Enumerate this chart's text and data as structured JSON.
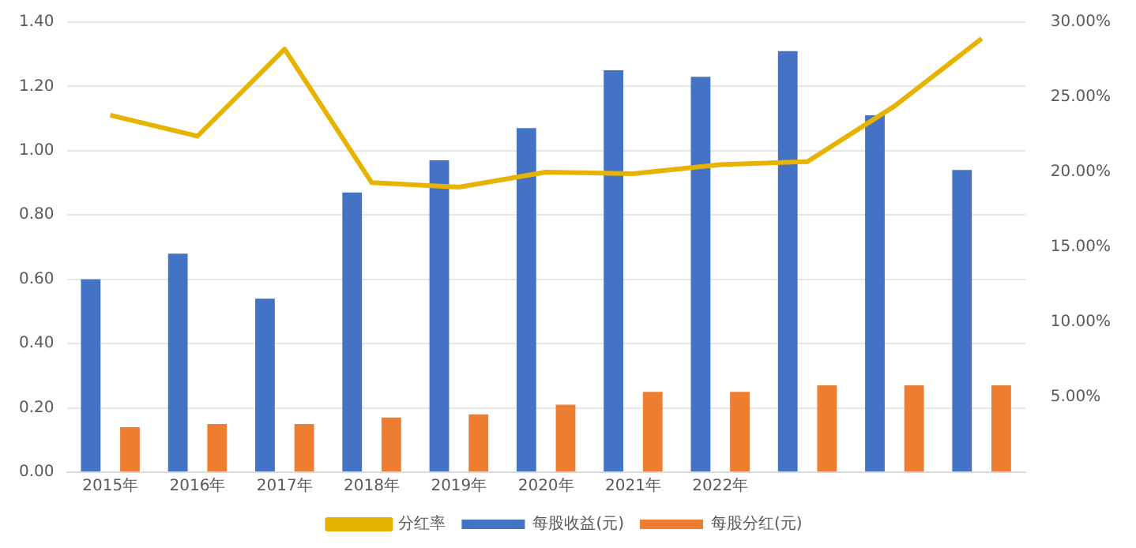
{
  "chart_data": {
    "type": "bar",
    "categories": [
      "2015年",
      "2016年",
      "2017年",
      "2018年",
      "2019年",
      "2020年",
      "2021年",
      "2022年",
      null,
      null,
      null
    ],
    "series": [
      {
        "name": "每股收益(元)",
        "color": "#4472c4",
        "values": [
          0.6,
          0.68,
          0.54,
          0.87,
          0.97,
          1.07,
          1.25,
          1.23,
          1.31,
          1.11,
          0.94
        ]
      },
      {
        "name": "每股分红(元)",
        "color": "#ed7d31",
        "values": [
          0.14,
          0.15,
          0.15,
          0.17,
          0.18,
          0.21,
          0.25,
          0.25,
          0.27,
          0.27,
          0.27
        ]
      },
      {
        "name": "分红率",
        "type": "line",
        "axis": "y2",
        "color": "#e6b400",
        "values": [
          23.8,
          22.4,
          28.2,
          19.3,
          19.0,
          20.0,
          19.9,
          20.5,
          20.7,
          24.4,
          28.9
        ]
      }
    ],
    "ylim": [
      0,
      1.4
    ],
    "yticks": [
      {
        "value": 0,
        "label": "0.00"
      },
      {
        "value": 0.2,
        "label": "0.20"
      },
      {
        "value": 0.4,
        "label": "0.40"
      },
      {
        "value": 0.6,
        "label": "0.60"
      },
      {
        "value": 0.8,
        "label": "0.80"
      },
      {
        "value": 1.0,
        "label": "1.00"
      },
      {
        "value": 1.2,
        "label": "1.20"
      },
      {
        "value": 1.4,
        "label": "1.40"
      }
    ],
    "y2lim": [
      0,
      30
    ],
    "y2ticks": [
      {
        "value": 5,
        "label": "5.00%"
      },
      {
        "value": 10,
        "label": "10.00%"
      },
      {
        "value": 15,
        "label": "15.00%"
      },
      {
        "value": 20,
        "label": "20.00%"
      },
      {
        "value": 25,
        "label": "25.00%"
      },
      {
        "value": 30,
        "label": "30.00%"
      }
    ],
    "grid": "y",
    "legend": "bottom",
    "marker": "none"
  }
}
